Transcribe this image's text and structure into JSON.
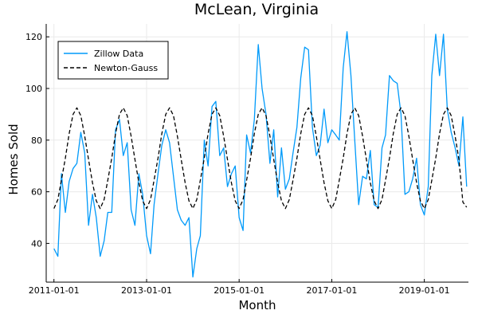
{
  "chart_data": {
    "type": "line",
    "title": "McLean, Virginia",
    "xlabel": "Month",
    "ylabel": "Homes Sold",
    "xlim": [
      "2010-11-01",
      "2019-12-15"
    ],
    "ylim": [
      25,
      125
    ],
    "xticks": [
      "2011-01-01",
      "2013-01-01",
      "2015-01-01",
      "2017-01-01",
      "2019-01-01"
    ],
    "yticks": [
      40,
      60,
      80,
      100,
      120
    ],
    "grid": true,
    "legend_position": "top-left",
    "series": [
      {
        "name": "Zillow Data",
        "color": "#009AFA",
        "style": "solid",
        "x": [
          "2011-01-01",
          "2011-02-01",
          "2011-03-01",
          "2011-04-01",
          "2011-05-01",
          "2011-06-01",
          "2011-07-01",
          "2011-08-01",
          "2011-09-01",
          "2011-10-01",
          "2011-11-01",
          "2011-12-01",
          "2012-01-01",
          "2012-02-01",
          "2012-03-01",
          "2012-04-01",
          "2012-05-01",
          "2012-06-01",
          "2012-07-01",
          "2012-08-01",
          "2012-09-01",
          "2012-10-01",
          "2012-11-01",
          "2012-12-01",
          "2013-01-01",
          "2013-02-01",
          "2013-03-01",
          "2013-04-01",
          "2013-05-01",
          "2013-06-01",
          "2013-07-01",
          "2013-08-01",
          "2013-09-01",
          "2013-10-01",
          "2013-11-01",
          "2013-12-01",
          "2014-01-01",
          "2014-02-01",
          "2014-03-01",
          "2014-04-01",
          "2014-05-01",
          "2014-06-01",
          "2014-07-01",
          "2014-08-01",
          "2014-09-01",
          "2014-10-01",
          "2014-11-01",
          "2014-12-01",
          "2015-01-01",
          "2015-02-01",
          "2015-03-01",
          "2015-04-01",
          "2015-05-01",
          "2015-06-01",
          "2015-07-01",
          "2015-08-01",
          "2015-09-01",
          "2015-10-01",
          "2015-11-01",
          "2015-12-01",
          "2016-01-01",
          "2016-02-01",
          "2016-03-01",
          "2016-04-01",
          "2016-05-01",
          "2016-06-01",
          "2016-07-01",
          "2016-08-01",
          "2016-09-01",
          "2016-10-01",
          "2016-11-01",
          "2016-12-01",
          "2017-01-01",
          "2017-02-01",
          "2017-03-01",
          "2017-04-01",
          "2017-05-01",
          "2017-06-01",
          "2017-07-01",
          "2017-08-01",
          "2017-09-01",
          "2017-10-01",
          "2017-11-01",
          "2017-12-01",
          "2018-01-01",
          "2018-02-01",
          "2018-03-01",
          "2018-04-01",
          "2018-05-01",
          "2018-06-01",
          "2018-07-01",
          "2018-08-01",
          "2018-09-01",
          "2018-10-01",
          "2018-11-01",
          "2018-12-01",
          "2019-01-01",
          "2019-02-01",
          "2019-03-01",
          "2019-04-01",
          "2019-05-01",
          "2019-06-01",
          "2019-07-01",
          "2019-08-01",
          "2019-09-01",
          "2019-10-01",
          "2019-11-01",
          "2019-12-01"
        ],
        "y": [
          38,
          35,
          67,
          52,
          64,
          69,
          71,
          83,
          75,
          47,
          59,
          50,
          35,
          41,
          52,
          52,
          84,
          88,
          74,
          79,
          53,
          47,
          67,
          59,
          43,
          36,
          55,
          67,
          78,
          84,
          79,
          66,
          53,
          49,
          47,
          50,
          27,
          38,
          43,
          80,
          70,
          93,
          95,
          74,
          77,
          62,
          67,
          70,
          50,
          45,
          82,
          75,
          88,
          117,
          100,
          90,
          71,
          84,
          58,
          77,
          61,
          65,
          75,
          85,
          104,
          116,
          115,
          85,
          74,
          78,
          92,
          79,
          84,
          82,
          80,
          108,
          122,
          105,
          80,
          55,
          66,
          65,
          76,
          55,
          54,
          77,
          82,
          105,
          103,
          102,
          90,
          59,
          60,
          65,
          73,
          55,
          51,
          62,
          105,
          121,
          105,
          121,
          92,
          83,
          77,
          70,
          89,
          62
        ]
      },
      {
        "name": "Newton-Gauss",
        "color": "#000000",
        "style": "dashed",
        "model": "periodic fit",
        "x": [
          "2011-01-01",
          "2011-02-01",
          "2011-03-01",
          "2011-04-01",
          "2011-05-01",
          "2011-06-01",
          "2011-07-01",
          "2011-08-01",
          "2011-09-01",
          "2011-10-01",
          "2011-11-01",
          "2011-12-01",
          "2012-01-01",
          "2012-02-01",
          "2012-03-01",
          "2012-04-01",
          "2012-05-01",
          "2012-06-01",
          "2012-07-01",
          "2012-08-01",
          "2012-09-01",
          "2012-10-01",
          "2012-11-01",
          "2012-12-01",
          "2013-01-01",
          "2013-02-01",
          "2013-03-01",
          "2013-04-01",
          "2013-05-01",
          "2013-06-01",
          "2013-07-01",
          "2013-08-01",
          "2013-09-01",
          "2013-10-01",
          "2013-11-01",
          "2013-12-01",
          "2014-01-01",
          "2014-02-01",
          "2014-03-01",
          "2014-04-01",
          "2014-05-01",
          "2014-06-01",
          "2014-07-01",
          "2014-08-01",
          "2014-09-01",
          "2014-10-01",
          "2014-11-01",
          "2014-12-01",
          "2015-01-01",
          "2015-02-01",
          "2015-03-01",
          "2015-04-01",
          "2015-05-01",
          "2015-06-01",
          "2015-07-01",
          "2015-08-01",
          "2015-09-01",
          "2015-10-01",
          "2015-11-01",
          "2015-12-01",
          "2016-01-01",
          "2016-02-01",
          "2016-03-01",
          "2016-04-01",
          "2016-05-01",
          "2016-06-01",
          "2016-07-01",
          "2016-08-01",
          "2016-09-01",
          "2016-10-01",
          "2016-11-01",
          "2016-12-01",
          "2017-01-01",
          "2017-02-01",
          "2017-03-01",
          "2017-04-01",
          "2017-05-01",
          "2017-06-01",
          "2017-07-01",
          "2017-08-01",
          "2017-09-01",
          "2017-10-01",
          "2017-11-01",
          "2017-12-01",
          "2018-01-01",
          "2018-02-01",
          "2018-03-01",
          "2018-04-01",
          "2018-05-01",
          "2018-06-01",
          "2018-07-01",
          "2018-08-01",
          "2018-09-01",
          "2018-10-01",
          "2018-11-01",
          "2018-12-01",
          "2019-01-01",
          "2019-02-01",
          "2019-03-01",
          "2019-04-01",
          "2019-05-01",
          "2019-06-01",
          "2019-07-01",
          "2019-08-01",
          "2019-09-01",
          "2019-10-01",
          "2019-11-01",
          "2019-12-01"
        ],
        "y": [
          53.5,
          57.0,
          64.5,
          73.0,
          82.5,
          90.0,
          92.5,
          89.5,
          81.5,
          72.5,
          63.5,
          56.5,
          53.5,
          57.0,
          64.5,
          73.0,
          82.5,
          90.0,
          92.5,
          89.5,
          81.5,
          72.5,
          63.5,
          56.5,
          53.5,
          57.0,
          64.5,
          73.0,
          82.5,
          90.0,
          92.5,
          89.5,
          81.5,
          72.5,
          63.5,
          56.5,
          53.5,
          57.0,
          64.5,
          73.0,
          82.5,
          90.0,
          92.5,
          89.5,
          81.5,
          72.5,
          63.5,
          56.5,
          53.5,
          57.0,
          64.5,
          73.0,
          82.5,
          90.0,
          92.5,
          89.5,
          81.5,
          72.5,
          63.5,
          56.5,
          53.5,
          57.0,
          64.5,
          73.0,
          82.5,
          90.0,
          92.5,
          89.5,
          81.5,
          72.5,
          63.5,
          56.5,
          53.5,
          57.0,
          64.5,
          73.0,
          82.5,
          90.0,
          92.5,
          89.5,
          81.5,
          72.5,
          63.5,
          56.5,
          53.5,
          57.0,
          64.5,
          73.0,
          82.5,
          90.0,
          92.5,
          89.5,
          81.5,
          72.5,
          63.5,
          56.5,
          53.5,
          57.0,
          64.5,
          73.0,
          82.5,
          90.0,
          92.5,
          89.5,
          81.5,
          72.5,
          56.0,
          54.0
        ]
      }
    ]
  }
}
